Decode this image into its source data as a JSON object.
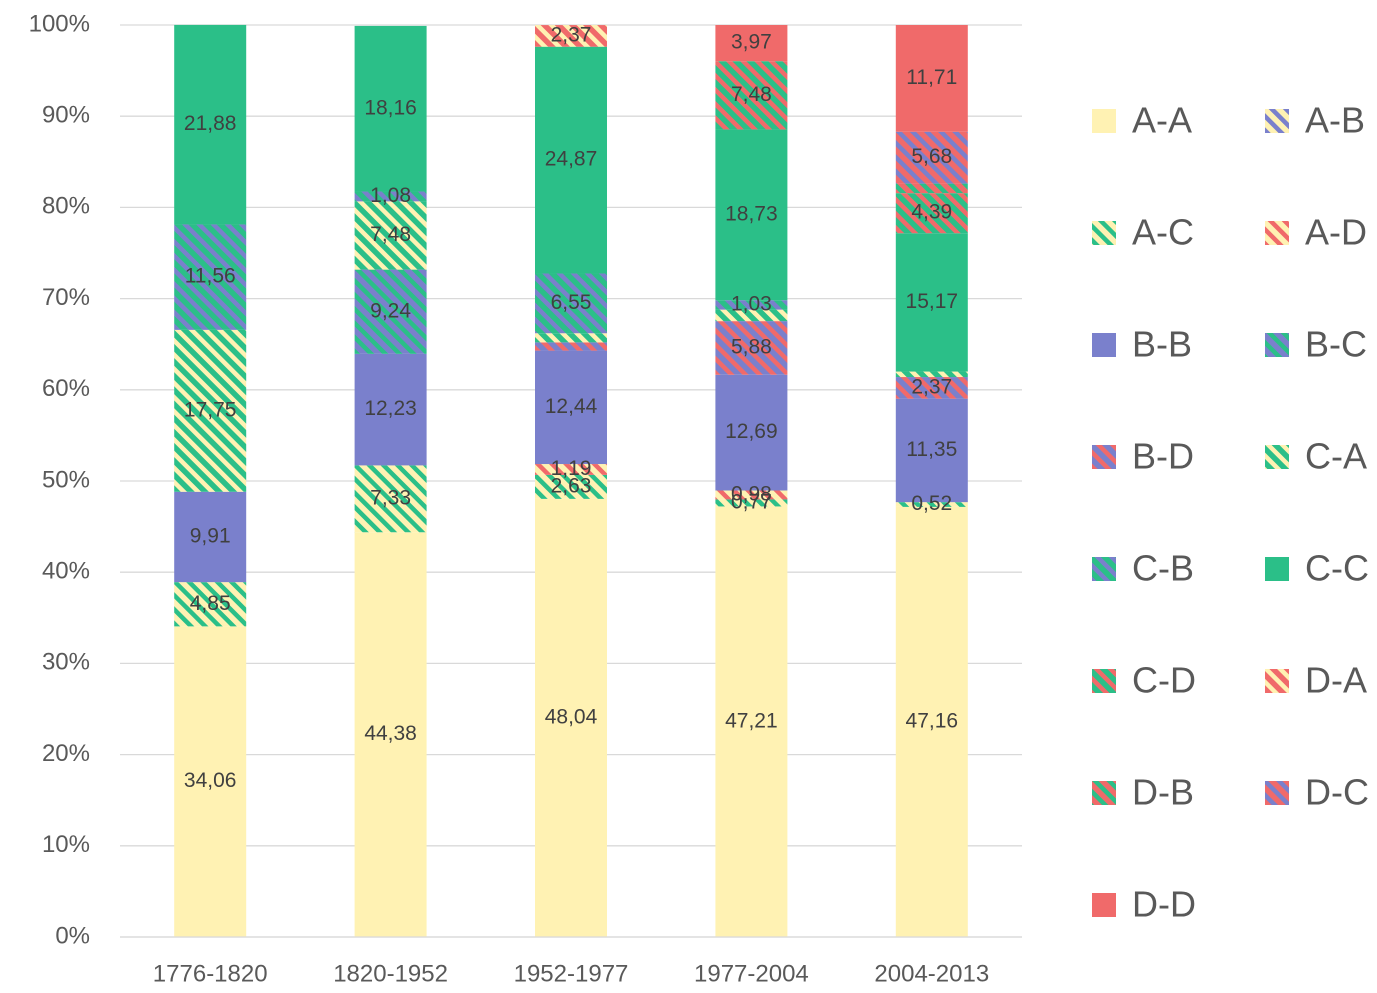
{
  "chart_data": {
    "type": "stacked_bar",
    "categories": [
      "1776-1820",
      "1820-1952",
      "1952-1977",
      "1977-2004",
      "2004-2013"
    ],
    "ylim": [
      0,
      100
    ],
    "yticks": [
      {
        "value": 0,
        "label": "0%"
      },
      {
        "value": 10,
        "label": "10%"
      },
      {
        "value": 20,
        "label": "20%"
      },
      {
        "value": 30,
        "label": "30%"
      },
      {
        "value": 40,
        "label": "40%"
      },
      {
        "value": 50,
        "label": "50%"
      },
      {
        "value": 60,
        "label": "60%"
      },
      {
        "value": 70,
        "label": "70%"
      },
      {
        "value": 80,
        "label": "80%"
      },
      {
        "value": 90,
        "label": "90%"
      },
      {
        "value": 100,
        "label": "100%"
      }
    ],
    "grid": true,
    "legend": "right",
    "series": [
      {
        "name": "A-A",
        "color": "#fff2b3",
        "values": [
          34.06,
          44.38,
          48.04,
          47.21,
          47.16
        ],
        "value_labels": [
          "34,06",
          "44,38",
          "48,04",
          "47,21",
          "47,16"
        ]
      },
      {
        "name": "A-B",
        "color": "#fff2b3",
        "hatch": "#7a80cc",
        "values": [
          0,
          0,
          0,
          0,
          0
        ],
        "value_labels": [
          null,
          null,
          null,
          null,
          null
        ]
      },
      {
        "name": "A-C",
        "color": "#fff2b3",
        "hatch": "#2bbf88",
        "values": [
          4.85,
          7.33,
          2.63,
          0.77,
          0.52
        ],
        "value_labels": [
          "4,85",
          "7,33",
          "2,63",
          "0,77",
          "0,52"
        ]
      },
      {
        "name": "A-D",
        "color": "#fff2b3",
        "hatch": "#f06a6a",
        "values": [
          0,
          0,
          1.19,
          0.98,
          0
        ],
        "value_labels": [
          null,
          null,
          "1,19",
          "0,98",
          null
        ]
      },
      {
        "name": "B-B",
        "color": "#7a80cc",
        "values": [
          9.91,
          12.23,
          12.44,
          12.69,
          11.35
        ],
        "value_labels": [
          "9,91",
          "12,23",
          "12,44",
          "12,69",
          "11,35"
        ]
      },
      {
        "name": "B-C",
        "color": "#7a80cc",
        "hatch": "#2bbf88",
        "values": [
          0,
          9.24,
          0,
          0,
          0
        ],
        "value_labels": [
          null,
          "9,24",
          null,
          null,
          null
        ]
      },
      {
        "name": "B-D",
        "color": "#7a80cc",
        "hatch": "#f06a6a",
        "values": [
          0,
          0,
          0.9,
          5.88,
          2.37
        ],
        "value_labels": [
          null,
          null,
          null,
          "5,88",
          "2,37"
        ]
      },
      {
        "name": "C-A",
        "color": "#2bbf88",
        "hatch": "#fff2b3",
        "values": [
          17.75,
          7.48,
          1.0,
          1.26,
          0.6
        ],
        "value_labels": [
          "17,75",
          "7,48",
          null,
          null,
          null
        ]
      },
      {
        "name": "C-B",
        "color": "#2bbf88",
        "hatch": "#7a80cc",
        "values": [
          11.56,
          1.08,
          6.55,
          1.03,
          0
        ],
        "value_labels": [
          "11,56",
          "1,08",
          "6,55",
          "1,03",
          null
        ]
      },
      {
        "name": "C-C",
        "color": "#2bbf88",
        "values": [
          21.88,
          18.16,
          24.87,
          18.73,
          15.17
        ],
        "value_labels": [
          "21,88",
          "18,16",
          "24,87",
          "18,73",
          "15,17"
        ]
      },
      {
        "name": "C-D",
        "color": "#2bbf88",
        "hatch": "#f06a6a",
        "values": [
          0,
          0,
          0,
          7.48,
          4.39
        ],
        "value_labels": [
          null,
          null,
          null,
          "7,48",
          "4,39"
        ]
      },
      {
        "name": "D-A",
        "color": "#f06a6a",
        "hatch": "#fff2b3",
        "values": [
          0,
          0,
          2.37,
          0,
          0
        ],
        "value_labels": [
          null,
          null,
          "2,37",
          null,
          null
        ]
      },
      {
        "name": "D-B",
        "color": "#f06a6a",
        "hatch": "#2bbf88",
        "values": [
          0,
          0,
          0,
          0,
          1.05
        ],
        "value_labels": [
          null,
          null,
          null,
          null,
          null
        ]
      },
      {
        "name": "D-C",
        "color": "#f06a6a",
        "hatch": "#7a80cc",
        "values": [
          0,
          0,
          0,
          0,
          5.68
        ],
        "value_labels": [
          null,
          null,
          null,
          null,
          "5,68"
        ]
      },
      {
        "name": "D-D",
        "color": "#f06a6a",
        "values": [
          0,
          0,
          0,
          3.97,
          11.71
        ],
        "value_labels": [
          null,
          null,
          null,
          "3,97",
          "11,71"
        ]
      }
    ]
  }
}
